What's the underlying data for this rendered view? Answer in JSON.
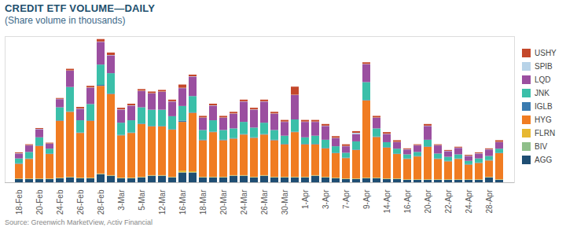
{
  "chart_data": {
    "type": "bar",
    "title": "CREDIT ETF VOLUME—DAILY",
    "subtitle": "(Share volume in thousands)",
    "source": "Source: Greenwich MarketView, Activ Financial",
    "stacked": true,
    "legend": "right",
    "tick_labels": "x",
    "ylim": [
      0,
      90000
    ],
    "yticks": [],
    "categories": [
      "18-Feb",
      null,
      "20-Feb",
      null,
      "24-Feb",
      null,
      "26-Feb",
      null,
      "28-Feb",
      null,
      "3-Mar",
      null,
      "5-Mar",
      null,
      "12-Mar",
      null,
      "16-Mar",
      null,
      "18-Mar",
      null,
      "20-Mar",
      null,
      "24-Mar",
      null,
      "26-Mar",
      null,
      "30-Mar",
      null,
      "1-Apr",
      null,
      "3-Apr",
      null,
      "7-Apr",
      null,
      "9-Apr",
      null,
      "14-Apr",
      null,
      "16-Apr",
      null,
      "20-Apr",
      null,
      "22-Apr",
      null,
      "24-Apr",
      null,
      "28-Apr",
      null
    ],
    "series": [
      {
        "name": "AGG",
        "color": "#1f4e73",
        "values": [
          2000,
          2000,
          2000,
          2000,
          2500,
          3000,
          2500,
          2500,
          5000,
          4000,
          2500,
          2500,
          3000,
          4000,
          4000,
          3000,
          6000,
          6000,
          3000,
          3000,
          3000,
          4000,
          4000,
          3000,
          4000,
          3000,
          3000,
          3000,
          3000,
          4000,
          3000,
          2500,
          2000,
          2000,
          2500,
          2500,
          2000,
          2000,
          1500,
          1500,
          1500,
          1500,
          1500,
          1500,
          1500,
          1500,
          3000,
          1500
        ]
      },
      {
        "name": "BIV",
        "color": "#8fbf8a",
        "values": [
          200,
          200,
          200,
          200,
          200,
          200,
          200,
          200,
          200,
          200,
          200,
          200,
          200,
          200,
          200,
          200,
          200,
          200,
          200,
          200,
          200,
          200,
          200,
          200,
          200,
          200,
          200,
          200,
          200,
          200,
          200,
          200,
          200,
          200,
          200,
          200,
          200,
          200,
          200,
          200,
          200,
          200,
          200,
          200,
          200,
          200,
          200,
          200
        ]
      },
      {
        "name": "FLRN",
        "color": "#e7b831",
        "values": [
          200,
          200,
          200,
          200,
          200,
          200,
          200,
          200,
          200,
          200,
          200,
          200,
          200,
          200,
          200,
          200,
          1000,
          600,
          200,
          200,
          200,
          200,
          200,
          200,
          200,
          200,
          200,
          200,
          200,
          200,
          200,
          200,
          200,
          200,
          200,
          200,
          200,
          200,
          200,
          200,
          200,
          200,
          200,
          200,
          200,
          200,
          200,
          200
        ]
      },
      {
        "name": "HYG",
        "color": "#f07c22",
        "values": [
          9000,
          12000,
          20000,
          15000,
          35000,
          40000,
          27500,
          35000,
          54000,
          50000,
          26000,
          27500,
          32500,
          30000,
          30000,
          29000,
          30000,
          36000,
          22500,
          27500,
          22500,
          22500,
          25000,
          24000,
          25000,
          22500,
          20000,
          27500,
          20000,
          19000,
          17500,
          15000,
          12500,
          17500,
          47500,
          25000,
          19000,
          15000,
          12500,
          14000,
          20000,
          12500,
          11000,
          12500,
          9000,
          10000,
          10000,
          16000
        ]
      },
      {
        "name": "IGLB",
        "color": "#3a7bb0",
        "values": [
          300,
          300,
          300,
          300,
          300,
          300,
          300,
          300,
          600,
          300,
          300,
          300,
          300,
          300,
          300,
          300,
          800,
          300,
          300,
          300,
          300,
          300,
          300,
          300,
          300,
          300,
          300,
          300,
          300,
          300,
          300,
          300,
          300,
          300,
          300,
          300,
          300,
          300,
          300,
          300,
          300,
          300,
          300,
          300,
          300,
          300,
          300,
          300
        ]
      },
      {
        "name": "JNK",
        "color": "#3bbfa9",
        "values": [
          3000,
          4000,
          5000,
          3000,
          8000,
          15000,
          7500,
          10000,
          12500,
          12500,
          7500,
          7500,
          10000,
          10000,
          10000,
          8000,
          9000,
          10000,
          6000,
          7000,
          6000,
          6000,
          7500,
          6000,
          7000,
          6000,
          5000,
          7500,
          4000,
          5000,
          5000,
          4000,
          3000,
          5000,
          11000,
          5000,
          3000,
          3000,
          2500,
          2500,
          4000,
          3000,
          2500,
          2500,
          2000,
          2500,
          2500,
          2500
        ]
      },
      {
        "name": "LQD",
        "color": "#9b4fa0",
        "values": [
          3000,
          4000,
          5000,
          3000,
          5000,
          10000,
          7000,
          10000,
          14000,
          11000,
          8000,
          9000,
          10000,
          10000,
          11000,
          9000,
          11000,
          12000,
          7500,
          9000,
          7500,
          9000,
          12500,
          11000,
          13000,
          10000,
          8500,
          15000,
          9500,
          8500,
          8500,
          5000,
          4000,
          4500,
          11000,
          6500,
          5000,
          4000,
          3000,
          4000,
          8500,
          5000,
          3500,
          4000,
          3000,
          3000,
          4000,
          4000
        ]
      },
      {
        "name": "SPIB",
        "color": "#b8d3e8",
        "values": [
          200,
          200,
          200,
          200,
          200,
          200,
          200,
          200,
          200,
          200,
          200,
          200,
          200,
          200,
          200,
          200,
          200,
          200,
          200,
          200,
          200,
          200,
          200,
          200,
          200,
          200,
          200,
          200,
          200,
          200,
          200,
          200,
          200,
          800,
          200,
          200,
          200,
          200,
          200,
          200,
          200,
          200,
          200,
          200,
          200,
          200,
          200,
          200
        ]
      },
      {
        "name": "USHY",
        "color": "#c4472a",
        "values": [
          500,
          500,
          500,
          500,
          500,
          1000,
          1000,
          1000,
          1500,
          1500,
          1000,
          1000,
          1000,
          1000,
          1000,
          1000,
          2000,
          1000,
          1000,
          1000,
          1000,
          1000,
          1000,
          1000,
          1000,
          1000,
          1000,
          5000,
          1000,
          1000,
          1000,
          1000,
          1000,
          1000,
          1000,
          1000,
          1000,
          1000,
          500,
          500,
          1000,
          500,
          500,
          500,
          500,
          500,
          500,
          1000
        ]
      }
    ]
  }
}
